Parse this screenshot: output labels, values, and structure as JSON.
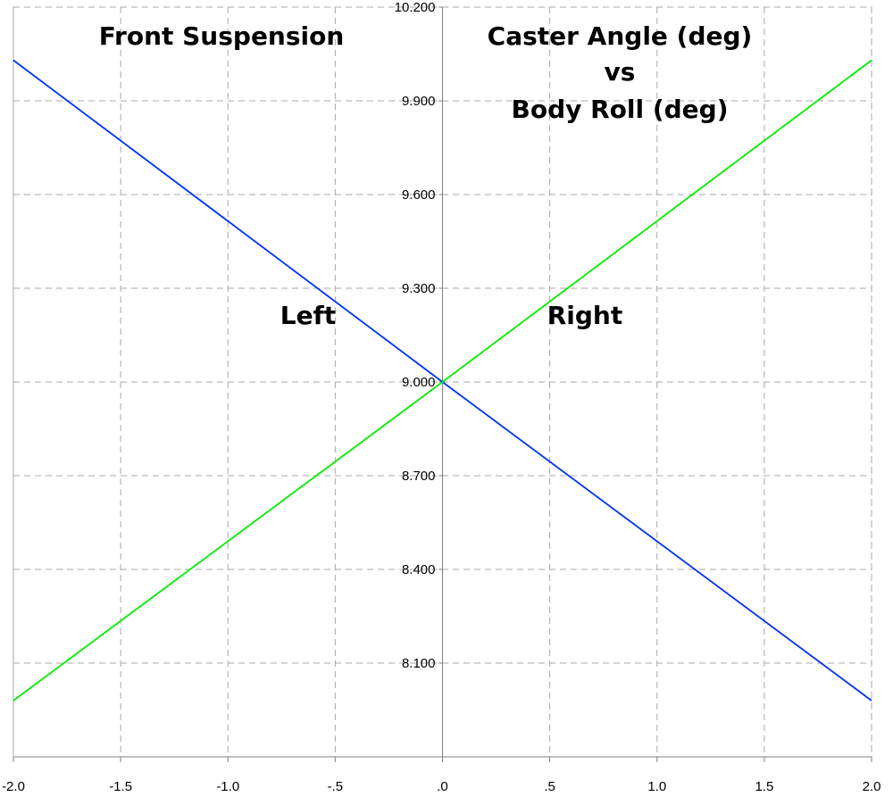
{
  "chart_data": {
    "type": "line",
    "x": [
      -2.0,
      0.0,
      2.0
    ],
    "series": [
      {
        "name": "Left",
        "values": [
          10.03,
          9.0,
          7.98
        ],
        "color": "#0033ee"
      },
      {
        "name": "Right",
        "values": [
          7.98,
          9.0,
          10.03
        ],
        "color": "#00ee00"
      }
    ],
    "title_left": "Front Suspension",
    "title_right_lines": [
      "Caster Angle (deg)",
      "vs",
      "Body Roll (deg)"
    ],
    "xlim": [
      -2.0,
      2.0
    ],
    "ylim": [
      7.8,
      10.2
    ],
    "x_ticks": [
      {
        "v": -2.0,
        "label": "-2.0"
      },
      {
        "v": -1.5,
        "label": "-1.5"
      },
      {
        "v": -1.0,
        "label": "-1.0"
      },
      {
        "v": -0.5,
        "label": "-.5"
      },
      {
        "v": 0.0,
        "label": ".0"
      },
      {
        "v": 0.5,
        "label": ".5"
      },
      {
        "v": 1.0,
        "label": "1.0"
      },
      {
        "v": 1.5,
        "label": "1.5"
      },
      {
        "v": 2.0,
        "label": "2.0"
      }
    ],
    "y_ticks": [
      {
        "v": 8.1,
        "label": "8.100"
      },
      {
        "v": 8.4,
        "label": "8.400"
      },
      {
        "v": 8.7,
        "label": "8.700"
      },
      {
        "v": 9.0,
        "label": "9.000"
      },
      {
        "v": 9.3,
        "label": "9.300"
      },
      {
        "v": 9.6,
        "label": "9.600"
      },
      {
        "v": 9.9,
        "label": "9.900"
      },
      {
        "v": 10.2,
        "label": "10.200"
      }
    ],
    "grid": true,
    "legend": "inline labels"
  }
}
